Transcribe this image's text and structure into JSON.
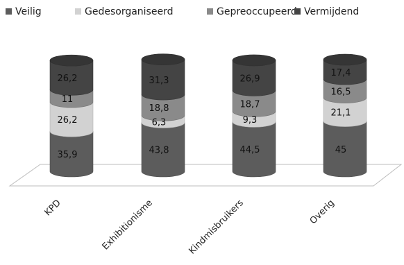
{
  "chart_data": {
    "type": "bar",
    "stacked": true,
    "style": "3d-cylinder",
    "categories": [
      "KPD",
      "Exhibitionisme",
      "Kindmisbruikers",
      "Overig"
    ],
    "series": [
      {
        "name": "Veilig",
        "values": [
          35.9,
          43.8,
          44.5,
          45
        ]
      },
      {
        "name": "Gedesorganiseerd",
        "values": [
          26.2,
          6.3,
          9.3,
          21.1
        ]
      },
      {
        "name": "Gepreoccupeerd",
        "values": [
          11,
          18.8,
          18.7,
          16.5
        ]
      },
      {
        "name": "Vermijdend",
        "values": [
          26.2,
          31.3,
          26.9,
          17.4
        ]
      }
    ],
    "value_labels": [
      [
        "35,9",
        "43,8",
        "44,5",
        "45"
      ],
      [
        "26,2",
        "6,3",
        "9,3",
        "21,1"
      ],
      [
        "11",
        "18,8",
        "18,7",
        "16,5"
      ],
      [
        "26,2",
        "31,3",
        "26,9",
        "17,4"
      ]
    ],
    "legend_position": "top",
    "colors": {
      "Veilig": "#5c5c5c",
      "Gedesorganiseerd": "#d2d2d2",
      "Gepreoccupeerd": "#8a8a8a",
      "Vermijdend": "#444444"
    },
    "grid": false
  }
}
